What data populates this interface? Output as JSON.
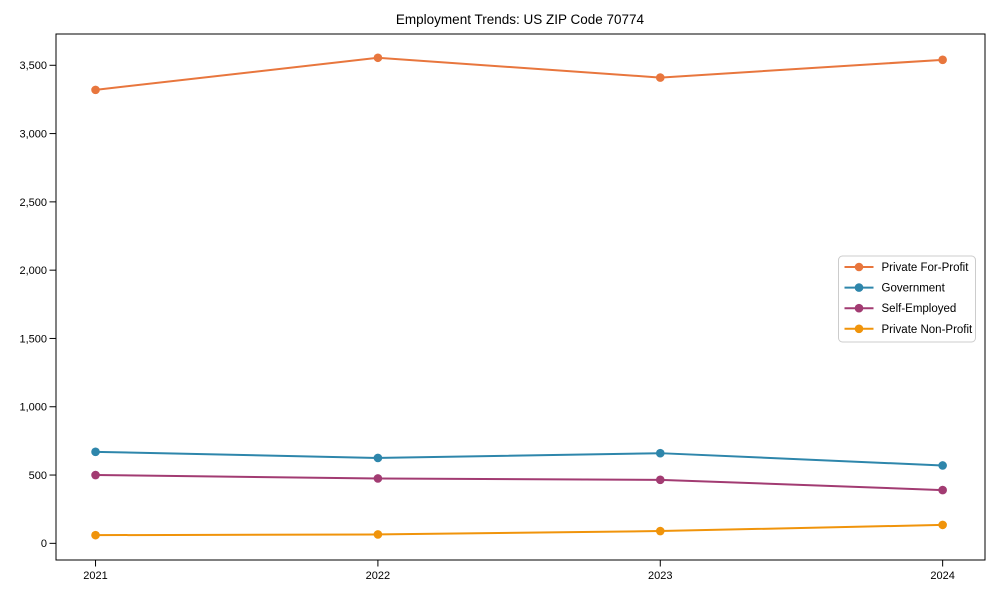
{
  "figure": {
    "background": "#ffffff",
    "text_color": "#000000",
    "spine_color": "#000000",
    "legend_border_color": "#cccccc"
  },
  "chart_data": {
    "type": "line",
    "title": "Employment Trends: US ZIP Code 70774",
    "xlabel": "",
    "ylabel": "",
    "x": [
      2021,
      2022,
      2023,
      2024
    ],
    "x_tick_labels": [
      "2021",
      "2022",
      "2023",
      "2024"
    ],
    "yticks": [
      0,
      500,
      1000,
      1500,
      2000,
      2500,
      3000,
      3500
    ],
    "ytick_labels": [
      "0",
      "500",
      "1,000",
      "1,500",
      "2,000",
      "2,500",
      "3,000",
      "3,500"
    ],
    "xlim": [
      2020.86,
      2024.15
    ],
    "ylim": [
      -122,
      3729
    ],
    "grid": false,
    "marker": "circle",
    "series": [
      {
        "name": "Private For-Profit",
        "color": "#e8763d",
        "values": [
          3320,
          3555,
          3410,
          3540
        ]
      },
      {
        "name": "Government",
        "color": "#2e86ab",
        "values": [
          670,
          625,
          660,
          570
        ]
      },
      {
        "name": "Self-Employed",
        "color": "#a23b72",
        "values": [
          500,
          475,
          465,
          390
        ]
      },
      {
        "name": "Private Non-Profit",
        "color": "#f0940b",
        "values": [
          60,
          65,
          90,
          135
        ]
      }
    ],
    "legend": {
      "position": "center-right",
      "entries": [
        "Private For-Profit",
        "Government",
        "Self-Employed",
        "Private Non-Profit"
      ]
    }
  }
}
